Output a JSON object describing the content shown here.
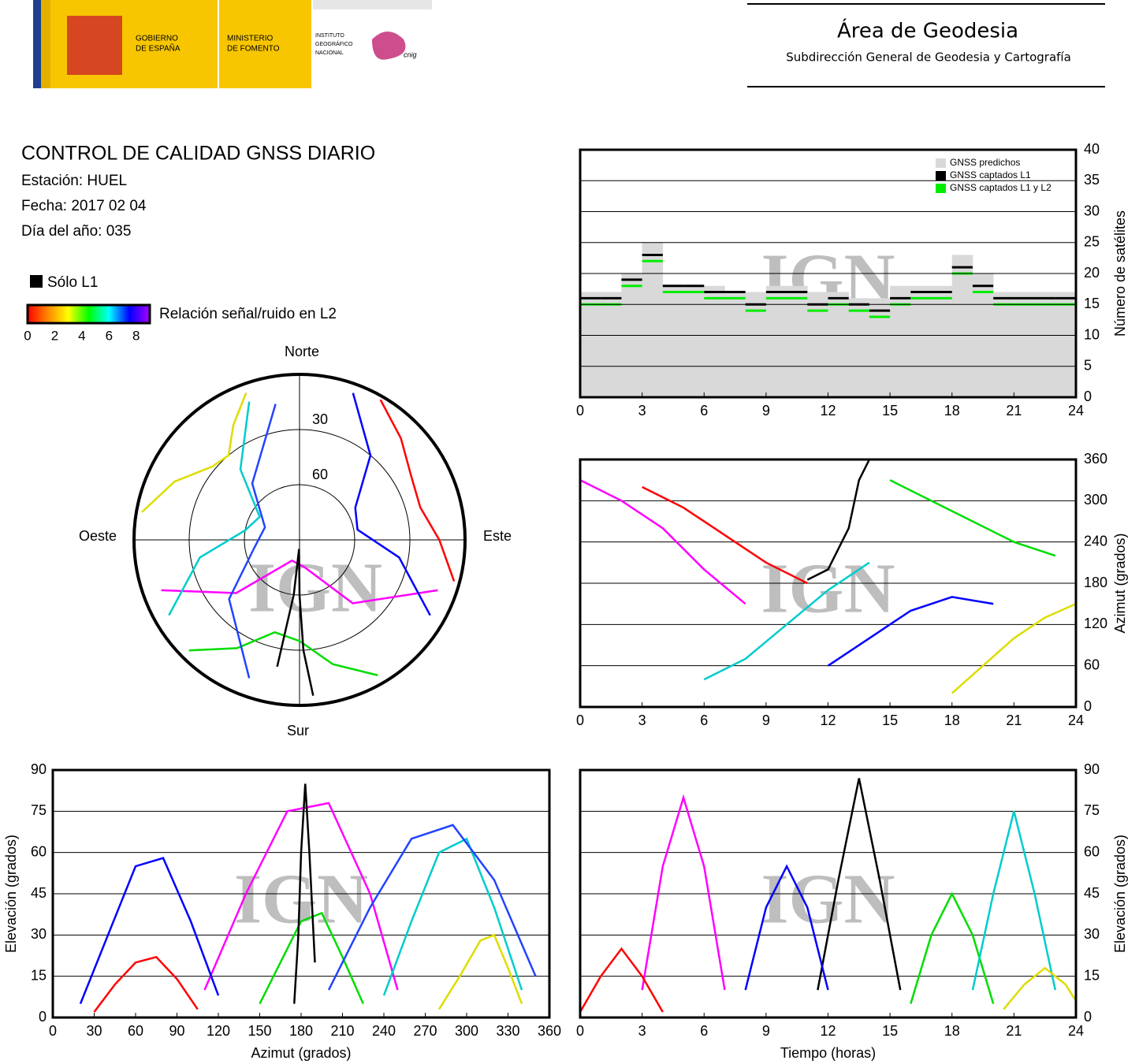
{
  "header": {
    "gobierno": [
      "GOBIERNO",
      "DE ESPAÑA"
    ],
    "ministerio": [
      "MINISTERIO",
      "DE FOMENTO"
    ],
    "instituto": [
      "INSTITUTO",
      "GEOGRÁFICO",
      "NACIONAL"
    ],
    "cnig": "cnig",
    "title": "Área de Geodesia",
    "subtitle": "Subdirección General de Geodesia y Cartografía"
  },
  "info": {
    "title": "CONTROL DE CALIDAD GNSS DIARIO",
    "lines": [
      "Estación: HUEL",
      "Fecha: 2017 02 04",
      "Día del año: 035"
    ]
  },
  "legend": {
    "l1_only": "Sólo L1",
    "l1_color": "#000000",
    "colorbar_label": "Relación señal/ruido en L2",
    "clim": [
      0,
      9
    ],
    "ticks": [
      0,
      2,
      4,
      6,
      8
    ],
    "colorscale": [
      "#ff0000",
      "#ff8800",
      "#ffff00",
      "#00ff00",
      "#00ffff",
      "#0000ff",
      "#aa00ff"
    ]
  },
  "watermark": "IGN",
  "chart_data": [
    {
      "type": "step",
      "ylabel": "Número de satélites",
      "xlim": [
        0,
        24
      ],
      "ylim": [
        0,
        40
      ],
      "xticks": [
        0,
        3,
        6,
        9,
        12,
        15,
        18,
        21,
        24
      ],
      "yticks": [
        0,
        5,
        10,
        15,
        20,
        25,
        30,
        35,
        40
      ],
      "grid": true,
      "legend": "upper right",
      "x": [
        0,
        1,
        2,
        3,
        4,
        5,
        6,
        7,
        8,
        9,
        10,
        11,
        12,
        13,
        14,
        15,
        16,
        17,
        18,
        19,
        20,
        21,
        22,
        23
      ],
      "series": [
        {
          "name": "GNSS predichos",
          "color": "#d9d9d9",
          "style": "area",
          "values": [
            17,
            17,
            20,
            25,
            18,
            18,
            18,
            17,
            17,
            18,
            18,
            17,
            17,
            16,
            16,
            18,
            18,
            18,
            23,
            20,
            17,
            17,
            17,
            17
          ]
        },
        {
          "name": "GNSS captados L1",
          "color": "#000000",
          "style": "step",
          "values": [
            16,
            16,
            19,
            23,
            18,
            18,
            17,
            17,
            15,
            17,
            17,
            15,
            16,
            15,
            14,
            16,
            17,
            17,
            21,
            18,
            16,
            16,
            16,
            16
          ]
        },
        {
          "name": "GNSS captados L1 y L2",
          "color": "#00ee00",
          "style": "step",
          "values": [
            15,
            15,
            18,
            22,
            17,
            17,
            16,
            16,
            14,
            16,
            16,
            14,
            15,
            14,
            13,
            15,
            16,
            16,
            20,
            17,
            15,
            15,
            15,
            15
          ]
        }
      ]
    },
    {
      "type": "polar",
      "labels": {
        "north": "Norte",
        "south": "Sur",
        "east": "Este",
        "west": "Oeste"
      },
      "rticks": [
        30,
        60
      ],
      "series": [
        {
          "color": "#ff00ff",
          "azimuth": [
            110,
            140,
            170,
            200,
            230,
            250
          ],
          "elevation": [
            10,
            45,
            75,
            78,
            45,
            10
          ]
        },
        {
          "color": "#0000ff",
          "azimuth": [
            20,
            40,
            60,
            80,
            100,
            120
          ],
          "elevation": [
            5,
            30,
            55,
            58,
            35,
            8
          ]
        },
        {
          "color": "#00cccc",
          "azimuth": [
            240,
            260,
            280,
            300,
            320,
            340
          ],
          "elevation": [
            8,
            35,
            60,
            65,
            40,
            10
          ]
        },
        {
          "color": "#00dd00",
          "azimuth": [
            150,
            165,
            180,
            195,
            210,
            225
          ],
          "elevation": [
            5,
            20,
            35,
            38,
            22,
            5
          ]
        },
        {
          "color": "#ff0000",
          "azimuth": [
            30,
            45,
            60,
            75,
            90,
            105
          ],
          "elevation": [
            2,
            12,
            20,
            22,
            14,
            3
          ]
        },
        {
          "color": "#dddd00",
          "azimuth": [
            280,
            295,
            310,
            320,
            330,
            340
          ],
          "elevation": [
            3,
            15,
            28,
            30,
            18,
            5
          ]
        },
        {
          "color": "#000000",
          "azimuth": [
            175,
            178,
            180,
            183,
            186,
            190
          ],
          "elevation": [
            5,
            30,
            60,
            85,
            60,
            20
          ]
        },
        {
          "color": "#2244ff",
          "azimuth": [
            200,
            230,
            260,
            290,
            320,
            350
          ],
          "elevation": [
            10,
            40,
            65,
            70,
            50,
            15
          ]
        }
      ]
    },
    {
      "type": "line",
      "ylabel": "Azimut (grados)",
      "xlim": [
        0,
        24
      ],
      "ylim": [
        0,
        360
      ],
      "xticks": [
        0,
        3,
        6,
        9,
        12,
        15,
        18,
        21,
        24
      ],
      "yticks": [
        0,
        60,
        120,
        180,
        240,
        300,
        360
      ],
      "grid": true,
      "series": [
        {
          "color": "#ff00ff",
          "x": [
            0,
            2,
            4,
            6,
            8
          ],
          "values": [
            330,
            300,
            260,
            200,
            150
          ]
        },
        {
          "color": "#ff0000",
          "x": [
            3,
            5,
            7,
            9,
            11
          ],
          "values": [
            320,
            290,
            250,
            210,
            180
          ]
        },
        {
          "color": "#0000ff",
          "x": [
            12,
            14,
            16,
            18,
            20
          ],
          "values": [
            60,
            100,
            140,
            160,
            150
          ]
        },
        {
          "color": "#00cccc",
          "x": [
            6,
            8,
            10,
            12,
            14
          ],
          "values": [
            40,
            70,
            120,
            170,
            210
          ]
        },
        {
          "color": "#00dd00",
          "x": [
            15,
            17,
            19,
            21,
            23
          ],
          "values": [
            330,
            300,
            270,
            240,
            220
          ]
        },
        {
          "color": "#000000",
          "x": [
            11,
            12,
            13,
            13.5,
            14
          ],
          "values": [
            185,
            200,
            260,
            330,
            360
          ]
        },
        {
          "color": "#dddd00",
          "x": [
            18,
            19.5,
            21,
            22.5,
            24
          ],
          "values": [
            20,
            60,
            100,
            130,
            150
          ]
        }
      ]
    },
    {
      "type": "line",
      "xlabel": "Azimut (grados)",
      "ylabel": "Elevación (grados)",
      "xlim": [
        0,
        360
      ],
      "ylim": [
        0,
        90
      ],
      "xticks": [
        0,
        30,
        60,
        90,
        120,
        150,
        180,
        210,
        240,
        270,
        300,
        330,
        360
      ],
      "yticks": [
        0,
        15,
        30,
        45,
        60,
        75,
        90
      ],
      "grid": true,
      "series": [
        {
          "color": "#ff00ff",
          "x": [
            110,
            140,
            170,
            200,
            230,
            250
          ],
          "values": [
            10,
            45,
            75,
            78,
            45,
            10
          ]
        },
        {
          "color": "#0000ff",
          "x": [
            20,
            40,
            60,
            80,
            100,
            120
          ],
          "values": [
            5,
            30,
            55,
            58,
            35,
            8
          ]
        },
        {
          "color": "#00cccc",
          "x": [
            240,
            260,
            280,
            300,
            320,
            340
          ],
          "values": [
            8,
            35,
            60,
            65,
            40,
            10
          ]
        },
        {
          "color": "#00dd00",
          "x": [
            150,
            165,
            180,
            195,
            210,
            225
          ],
          "values": [
            5,
            20,
            35,
            38,
            22,
            5
          ]
        },
        {
          "color": "#ff0000",
          "x": [
            30,
            45,
            60,
            75,
            90,
            105
          ],
          "values": [
            2,
            12,
            20,
            22,
            14,
            3
          ]
        },
        {
          "color": "#dddd00",
          "x": [
            280,
            295,
            310,
            320,
            330,
            340
          ],
          "values": [
            3,
            15,
            28,
            30,
            18,
            5
          ]
        },
        {
          "color": "#000000",
          "x": [
            175,
            178,
            180,
            183,
            186,
            190
          ],
          "values": [
            5,
            30,
            60,
            85,
            60,
            20
          ]
        },
        {
          "color": "#2244ff",
          "x": [
            200,
            230,
            260,
            290,
            320,
            350
          ],
          "values": [
            10,
            40,
            65,
            70,
            50,
            15
          ]
        }
      ]
    },
    {
      "type": "line",
      "xlabel": "Tiempo (horas)",
      "ylabel": "Elevación (grados)",
      "xlim": [
        0,
        24
      ],
      "ylim": [
        0,
        90
      ],
      "xticks": [
        0,
        3,
        6,
        9,
        12,
        15,
        18,
        21,
        24
      ],
      "yticks": [
        0,
        15,
        30,
        45,
        60,
        75,
        90
      ],
      "grid": true,
      "series": [
        {
          "color": "#000000",
          "x": [
            11.5,
            12.5,
            13.5,
            14.5,
            15.5
          ],
          "values": [
            10,
            50,
            87,
            50,
            10
          ]
        },
        {
          "color": "#ff00ff",
          "x": [
            3,
            4,
            5,
            6,
            7
          ],
          "values": [
            10,
            55,
            80,
            55,
            10
          ]
        },
        {
          "color": "#0000ff",
          "x": [
            8,
            9,
            10,
            11,
            12
          ],
          "values": [
            10,
            40,
            55,
            40,
            10
          ]
        },
        {
          "color": "#00dd00",
          "x": [
            16,
            17,
            18,
            19,
            20
          ],
          "values": [
            5,
            30,
            45,
            30,
            5
          ]
        },
        {
          "color": "#ff0000",
          "x": [
            0,
            1,
            2,
            3,
            4
          ],
          "values": [
            2,
            15,
            25,
            15,
            2
          ]
        },
        {
          "color": "#00cccc",
          "x": [
            19,
            20,
            21,
            22,
            23
          ],
          "values": [
            10,
            45,
            75,
            45,
            10
          ]
        },
        {
          "color": "#dddd00",
          "x": [
            20.5,
            21.5,
            22.5,
            23.5,
            24
          ],
          "values": [
            3,
            12,
            18,
            12,
            6
          ]
        }
      ]
    }
  ]
}
